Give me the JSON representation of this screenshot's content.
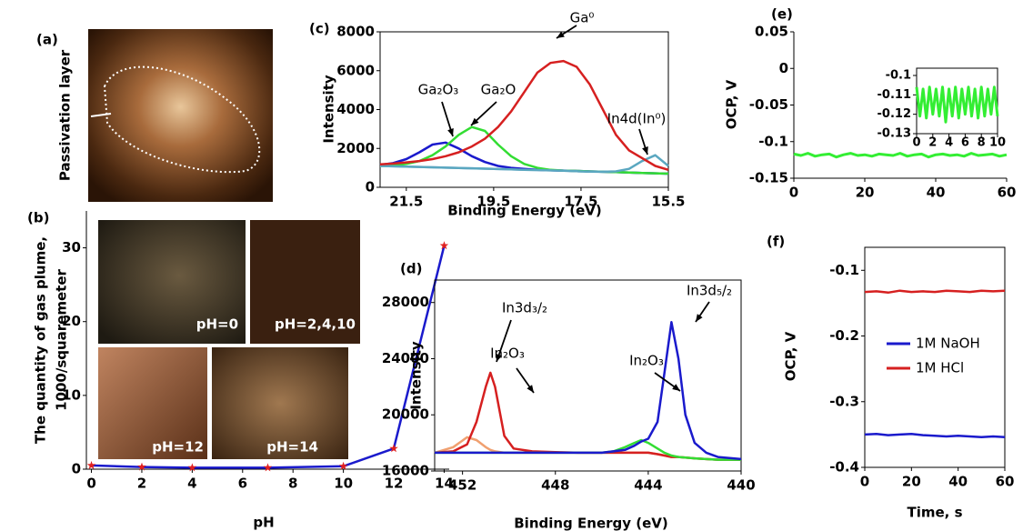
{
  "photo": {
    "panel_label": "(a)",
    "caption": "Passivation layer",
    "inset_labels": [
      "pH=0",
      "pH=2,4,10",
      "pH=12",
      "pH=14"
    ]
  },
  "chart_data": [
    {
      "type": "line",
      "panel_label": "(b)",
      "xlabel": "pH",
      "ylabel": [
        "The quantity of gas plume,",
        "1000/squaremeter"
      ],
      "x": [
        0,
        2,
        4,
        7,
        10,
        12,
        14
      ],
      "xlim": [
        -0.2,
        14.2
      ],
      "xticks": [
        0,
        2,
        4,
        6,
        8,
        10,
        12,
        14
      ],
      "ylim": [
        0,
        35
      ],
      "yticks": [
        0,
        10,
        20,
        30
      ],
      "frame": false,
      "series": [
        {
          "color": "#1a1acc",
          "marker": "star",
          "marker_color": "#e02020",
          "values": [
            0.5,
            0.3,
            0.2,
            0.2,
            0.4,
            2.8,
            30.3
          ]
        }
      ]
    },
    {
      "type": "line",
      "panel_label": "(c)",
      "xlabel": "Binding Energy (eV)",
      "ylabel": [
        "Intensity"
      ],
      "x": [
        22.1,
        21.8,
        21.5,
        21.2,
        20.9,
        20.6,
        20.3,
        20.0,
        19.7,
        19.4,
        19.1,
        18.8,
        18.5,
        18.2,
        17.9,
        17.6,
        17.3,
        17.0,
        16.7,
        16.4,
        16.1,
        15.8,
        15.5
      ],
      "xlim": [
        22.1,
        15.5
      ],
      "xticks": [
        21.5,
        19.5,
        17.5,
        15.5
      ],
      "ylim": [
        0,
        8000
      ],
      "yticks": [
        0,
        2000,
        4000,
        6000,
        8000
      ],
      "frame": true,
      "annotations": [
        "Ga⁰",
        "Ga₂O₃",
        "Ga₂O",
        "In4d(In⁰)"
      ],
      "series": [
        {
          "color": "#8ab4d8",
          "values": [
            1100,
            1080,
            1060,
            1050,
            1030,
            1010,
            990,
            980,
            960,
            940,
            920,
            900,
            890,
            870,
            850,
            830,
            810,
            800,
            780,
            760,
            740,
            720,
            700
          ]
        },
        {
          "color": "#1a1acc",
          "values": [
            1150,
            1250,
            1450,
            1800,
            2200,
            2300,
            2000,
            1600,
            1300,
            1100,
            1000,
            950,
            900,
            880,
            860,
            840,
            820,
            800,
            780,
            760,
            740,
            720,
            700
          ]
        },
        {
          "color": "#33dd33",
          "values": [
            1100,
            1120,
            1200,
            1350,
            1650,
            2100,
            2700,
            3100,
            2900,
            2200,
            1600,
            1200,
            1000,
            900,
            860,
            840,
            820,
            800,
            780,
            760,
            740,
            720,
            700
          ]
        },
        {
          "color": "#5aa7c0",
          "values": [
            1100,
            1080,
            1060,
            1050,
            1030,
            1010,
            990,
            980,
            960,
            940,
            920,
            900,
            890,
            870,
            850,
            830,
            810,
            800,
            820,
            950,
            1350,
            1650,
            1100
          ]
        },
        {
          "color": "#d62020",
          "values": [
            1180,
            1220,
            1280,
            1350,
            1450,
            1600,
            1800,
            2100,
            2500,
            3100,
            3900,
            4900,
            5900,
            6400,
            6500,
            6200,
            5300,
            4000,
            2700,
            1900,
            1500,
            1100,
            900
          ]
        }
      ]
    },
    {
      "type": "line",
      "panel_label": "(d)",
      "xlabel": "Binding Energy (eV)",
      "ylabel": [
        "Intensity"
      ],
      "x": [
        453.2,
        452.4,
        451.8,
        451.4,
        451.0,
        450.8,
        450.6,
        450.2,
        449.8,
        449,
        448,
        447,
        446,
        445.5,
        445,
        444.6,
        444.3,
        444,
        443.6,
        443.3,
        443.0,
        442.7,
        442.4,
        442,
        441.5,
        441,
        440
      ],
      "xlim": [
        453.2,
        440
      ],
      "xticks": [
        452,
        448,
        444,
        440
      ],
      "ylim": [
        16000,
        29600
      ],
      "yticks": [
        16000,
        20000,
        24000,
        28000
      ],
      "frame": true,
      "annotations": [
        "In3d₃/₂",
        "In₂O₃",
        "In₂O₃",
        "In3d₅/₂"
      ],
      "series": [
        {
          "color": "#f0a070",
          "values": [
            17300,
            17700,
            18400,
            18200,
            17700,
            17500,
            17400,
            17300,
            17300,
            17300,
            17300,
            17300,
            17300,
            17300,
            17300,
            17300,
            17300,
            17300,
            17200,
            17100,
            17000,
            17000,
            16950,
            16900,
            16850,
            16800,
            16800
          ]
        },
        {
          "color": "#d62020",
          "values": [
            17300,
            17400,
            17900,
            19500,
            22000,
            23000,
            22000,
            18500,
            17600,
            17400,
            17350,
            17300,
            17300,
            17300,
            17300,
            17300,
            17300,
            17300,
            17200,
            17100,
            17000,
            17000,
            16950,
            16900,
            16850,
            16800,
            16800
          ]
        },
        {
          "color": "#33dd33",
          "values": [
            17300,
            17300,
            17300,
            17300,
            17300,
            17300,
            17300,
            17300,
            17300,
            17300,
            17300,
            17300,
            17300,
            17400,
            17700,
            18000,
            18200,
            18000,
            17600,
            17300,
            17100,
            17000,
            16950,
            16900,
            16850,
            16800,
            16800
          ]
        },
        {
          "color": "#1a1acc",
          "values": [
            17300,
            17300,
            17300,
            17300,
            17300,
            17300,
            17300,
            17300,
            17300,
            17300,
            17300,
            17300,
            17300,
            17400,
            17500,
            17800,
            18100,
            18300,
            19500,
            23000,
            26600,
            24000,
            20000,
            18000,
            17300,
            17000,
            16850
          ]
        }
      ]
    },
    {
      "type": "line",
      "panel_label": "(e)",
      "ylabel": [
        "OCP, V"
      ],
      "x": [
        0,
        2,
        4,
        6,
        8,
        10,
        12,
        14,
        16,
        18,
        20,
        22,
        24,
        26,
        28,
        30,
        32,
        34,
        36,
        38,
        40,
        42,
        44,
        46,
        48,
        50,
        52,
        54,
        56,
        58,
        60
      ],
      "xlim": [
        0,
        60
      ],
      "xticks": [
        0,
        20,
        40,
        60
      ],
      "ylim": [
        -0.15,
        0.05
      ],
      "yticks": [
        -0.15,
        -0.1,
        -0.05,
        0,
        0.05
      ],
      "frame": false,
      "series": [
        {
          "color": "#33ee33",
          "values": [
            -0.117,
            -0.119,
            -0.116,
            -0.12,
            -0.118,
            -0.117,
            -0.121,
            -0.118,
            -0.116,
            -0.119,
            -0.118,
            -0.12,
            -0.117,
            -0.118,
            -0.119,
            -0.116,
            -0.12,
            -0.118,
            -0.117,
            -0.121,
            -0.118,
            -0.117,
            -0.119,
            -0.118,
            -0.12,
            -0.116,
            -0.119,
            -0.118,
            -0.117,
            -0.12,
            -0.118
          ]
        }
      ]
    },
    {
      "type": "line",
      "x": [
        0,
        0.4,
        0.8,
        1.2,
        1.6,
        2.0,
        2.4,
        2.8,
        3.2,
        3.6,
        4.0,
        4.4,
        4.8,
        5.2,
        5.6,
        6.0,
        6.4,
        6.8,
        7.2,
        7.6,
        8.0,
        8.4,
        8.8,
        9.2,
        9.6,
        10.0
      ],
      "xlim": [
        0,
        10
      ],
      "xticks": [
        0,
        2,
        4,
        6,
        8,
        10
      ],
      "ylim": [
        -0.13,
        -0.1
      ],
      "yticks": [
        -0.13,
        -0.12,
        -0.11,
        -0.1
      ],
      "frame": true,
      "series": [
        {
          "color": "#33ee33",
          "values": [
            -0.106,
            -0.121,
            -0.107,
            -0.122,
            -0.106,
            -0.12,
            -0.107,
            -0.121,
            -0.106,
            -0.124,
            -0.107,
            -0.121,
            -0.106,
            -0.122,
            -0.107,
            -0.12,
            -0.106,
            -0.121,
            -0.107,
            -0.122,
            -0.106,
            -0.121,
            -0.107,
            -0.12,
            -0.106,
            -0.121
          ]
        }
      ]
    },
    {
      "type": "line",
      "panel_label": "(f)",
      "xlabel": "Time, s",
      "ylabel": [
        "OCP, V"
      ],
      "x": [
        0,
        5,
        10,
        15,
        20,
        25,
        30,
        35,
        40,
        45,
        50,
        55,
        60
      ],
      "xlim": [
        0,
        60
      ],
      "xticks": [
        0,
        20,
        40,
        60
      ],
      "ylim": [
        -0.4,
        -0.065
      ],
      "yticks": [
        -0.4,
        -0.3,
        -0.2,
        -0.1
      ],
      "frame": true,
      "series": [
        {
          "name": "1M NaOH",
          "color": "#1a1acc",
          "values": [
            -0.35,
            -0.349,
            -0.351,
            -0.35,
            -0.349,
            -0.351,
            -0.352,
            -0.353,
            -0.352,
            -0.353,
            -0.354,
            -0.353,
            -0.354
          ]
        },
        {
          "name": "1M HCl",
          "color": "#d62020",
          "values": [
            -0.133,
            -0.132,
            -0.134,
            -0.131,
            -0.133,
            -0.132,
            -0.133,
            -0.131,
            -0.132,
            -0.133,
            -0.131,
            -0.132,
            -0.131
          ]
        }
      ]
    }
  ]
}
